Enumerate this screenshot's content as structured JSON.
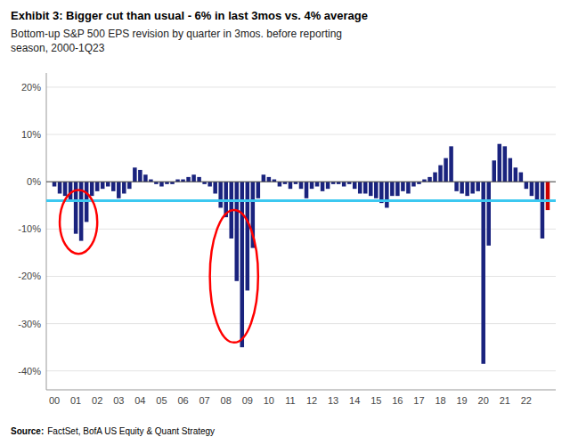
{
  "chart_data": {
    "type": "bar",
    "title": "Exhibit 3: Bigger cut than usual - 6% in last 3mos vs. 4% average",
    "subtitle": "Bottom-up S&P 500 EPS revision by quarter in 3mos. before reporting\nseason, 2000-1Q23",
    "source_label": "Source:",
    "source_text": "FactSet, BofA US Equity & Quant Strategy",
    "categories": [
      "00",
      null,
      null,
      null,
      "01",
      null,
      null,
      null,
      "02",
      null,
      null,
      null,
      "03",
      null,
      null,
      null,
      "04",
      null,
      null,
      null,
      "05",
      null,
      null,
      null,
      "06",
      null,
      null,
      null,
      "07",
      null,
      null,
      null,
      "08",
      null,
      null,
      null,
      "09",
      null,
      null,
      null,
      "10",
      null,
      null,
      null,
      "11",
      null,
      null,
      null,
      "12",
      null,
      null,
      null,
      "13",
      null,
      null,
      null,
      "14",
      null,
      null,
      null,
      "15",
      null,
      null,
      null,
      "16",
      null,
      null,
      null,
      "17",
      null,
      null,
      null,
      "18",
      null,
      null,
      null,
      "19",
      null,
      null,
      null,
      "20",
      null,
      null,
      null,
      "21",
      null,
      null,
      null,
      "22",
      null,
      null,
      null,
      null
    ],
    "values": [
      -1.0,
      -2.5,
      -3.0,
      -4.0,
      -11.0,
      -12.5,
      -8.5,
      -3.0,
      -2.0,
      -1.5,
      -1.0,
      -2.0,
      -3.5,
      -2.5,
      -1.5,
      3.0,
      2.5,
      1.5,
      0.5,
      -0.5,
      -1.0,
      -0.5,
      -0.5,
      0.5,
      0.5,
      1.0,
      1.5,
      1.0,
      -0.5,
      -1.0,
      -2.5,
      -5.5,
      -7.5,
      -12.0,
      -21.0,
      -35.0,
      -23.0,
      -14.0,
      -3.5,
      1.5,
      1.0,
      0.5,
      -1.0,
      -0.5,
      -1.5,
      -0.5,
      -1.5,
      -3.5,
      -1.5,
      -1.0,
      -2.0,
      -1.5,
      -0.5,
      -0.5,
      -1.0,
      -0.5,
      -1.5,
      -2.5,
      -2.5,
      -3.0,
      -3.5,
      -4.5,
      -5.5,
      -3.0,
      -3.0,
      -2.0,
      -2.5,
      -1.0,
      -0.5,
      0.5,
      1.0,
      2.0,
      3.5,
      5.0,
      7.5,
      -2.0,
      -2.5,
      -3.0,
      -2.5,
      -2.0,
      -38.5,
      -13.5,
      4.5,
      8.0,
      7.5,
      5.0,
      3.0,
      2.0,
      -1.5,
      -3.0,
      -4.0,
      -12.0,
      -6.0
    ],
    "colors": [
      "#1A237E",
      "#1A237E",
      "#1A237E",
      "#1A237E",
      "#1A237E",
      "#1A237E",
      "#1A237E",
      "#1A237E",
      "#1A237E",
      "#1A237E",
      "#1A237E",
      "#1A237E",
      "#1A237E",
      "#1A237E",
      "#1A237E",
      "#1A237E",
      "#1A237E",
      "#1A237E",
      "#1A237E",
      "#1A237E",
      "#1A237E",
      "#1A237E",
      "#1A237E",
      "#1A237E",
      "#1A237E",
      "#1A237E",
      "#1A237E",
      "#1A237E",
      "#1A237E",
      "#1A237E",
      "#1A237E",
      "#1A237E",
      "#1A237E",
      "#1A237E",
      "#1A237E",
      "#1A237E",
      "#1A237E",
      "#1A237E",
      "#1A237E",
      "#1A237E",
      "#1A237E",
      "#1A237E",
      "#1A237E",
      "#1A237E",
      "#1A237E",
      "#1A237E",
      "#1A237E",
      "#1A237E",
      "#1A237E",
      "#1A237E",
      "#1A237E",
      "#1A237E",
      "#1A237E",
      "#1A237E",
      "#1A237E",
      "#1A237E",
      "#1A237E",
      "#1A237E",
      "#1A237E",
      "#1A237E",
      "#1A237E",
      "#1A237E",
      "#1A237E",
      "#1A237E",
      "#1A237E",
      "#1A237E",
      "#1A237E",
      "#1A237E",
      "#1A237E",
      "#1A237E",
      "#1A237E",
      "#1A237E",
      "#1A237E",
      "#1A237E",
      "#1A237E",
      "#1A237E",
      "#1A237E",
      "#1A237E",
      "#1A237E",
      "#1A237E",
      "#1A237E",
      "#1A237E",
      "#1A237E",
      "#1A237E",
      "#1A237E",
      "#1A237E",
      "#1A237E",
      "#1A237E",
      "#1A237E",
      "#1A237E",
      "#1A237E",
      "#1A237E",
      "#CC0000"
    ],
    "reference_line": {
      "value": -4.0,
      "color": "#3CC8F0"
    },
    "ellipses": [
      {
        "x": 4.5,
        "y": -8.5,
        "width": 7.0,
        "height": 13.5,
        "color": "red"
      },
      {
        "x": 33.5,
        "y": -20.0,
        "width": 9.0,
        "height": 28.0,
        "color": "red"
      }
    ],
    "ylim": [
      -44,
      23
    ],
    "yticks": [
      {
        "value": -40,
        "label": "-40%"
      },
      {
        "value": -30,
        "label": "-30%"
      },
      {
        "value": -20,
        "label": "-20%"
      },
      {
        "value": -10,
        "label": "-10%"
      },
      {
        "value": 0,
        "label": "0%"
      },
      {
        "value": 10,
        "label": "10%"
      },
      {
        "value": 20,
        "label": "20%"
      }
    ],
    "grid": true
  }
}
